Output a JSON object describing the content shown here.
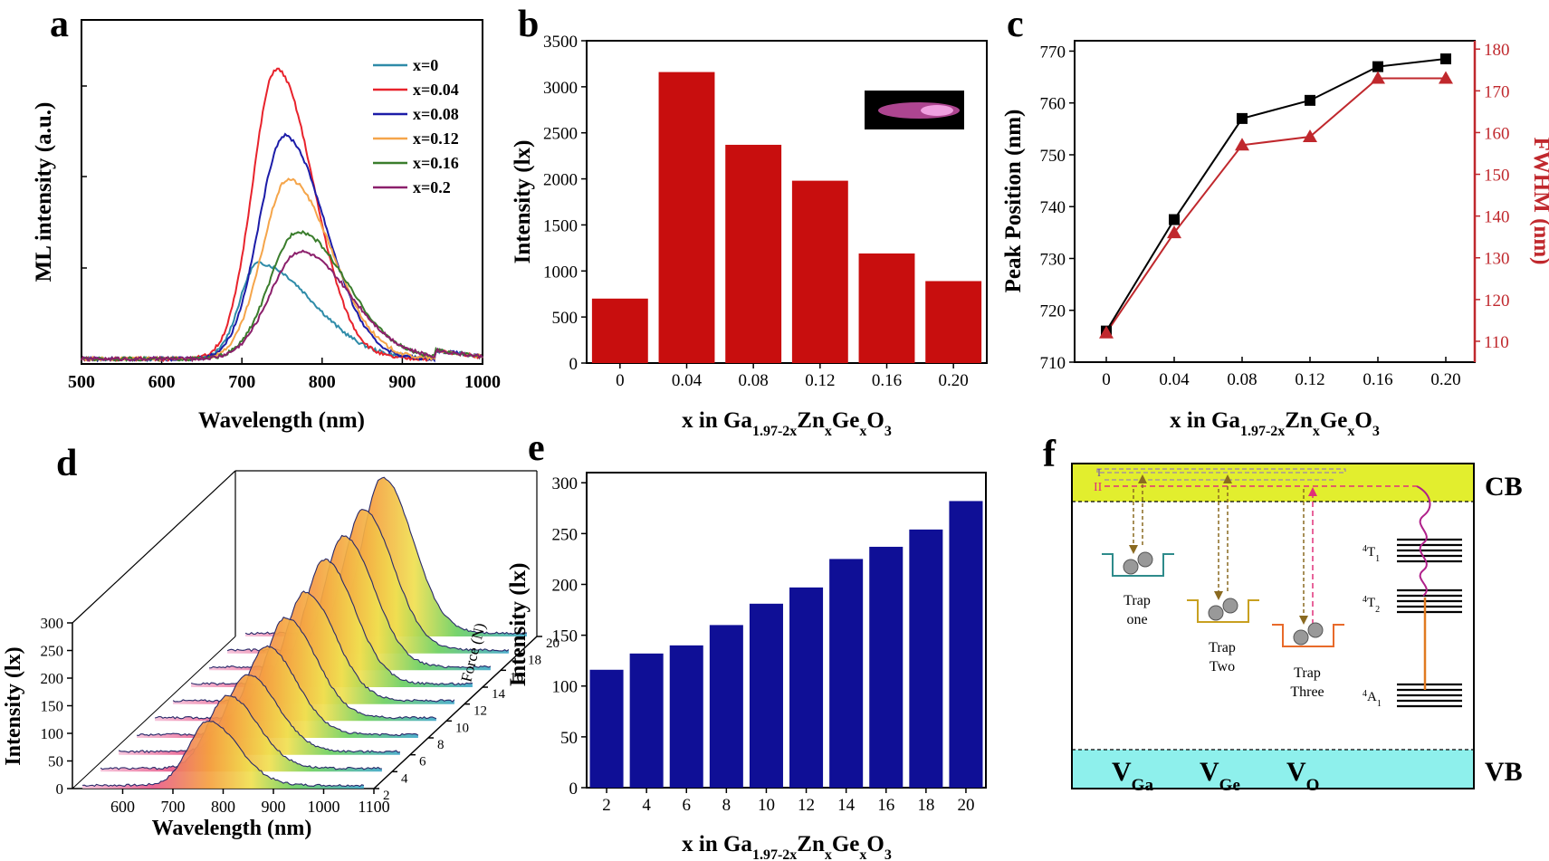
{
  "panel_letters": [
    "a",
    "b",
    "c",
    "d",
    "e",
    "f"
  ],
  "chart_data": [
    {
      "panel": "a",
      "type": "line",
      "xlabel": "Wavelength (nm)",
      "ylabel": "ML intensity (a.u.)",
      "xlim": [
        500,
        1000
      ],
      "xticks": [
        "500",
        "600",
        "700",
        "800",
        "900",
        "1000"
      ],
      "legend_position": "top-right",
      "series": [
        {
          "name": "x=0",
          "color": "#2e8ba8",
          "peak": 720,
          "amp": 0.33,
          "wl": 32,
          "wr": 95
        },
        {
          "name": "x=0.04",
          "color": "#e8232c",
          "peak": 743,
          "amp": 1.0,
          "wl": 42,
          "wr": 65
        },
        {
          "name": "x=0.08",
          "color": "#1c1ca8",
          "peak": 753,
          "amp": 0.77,
          "wl": 45,
          "wr": 72
        },
        {
          "name": "x=0.12",
          "color": "#f5a54a",
          "peak": 758,
          "amp": 0.62,
          "wl": 46,
          "wr": 76
        },
        {
          "name": "x=0.16",
          "color": "#3a7d2c",
          "peak": 770,
          "amp": 0.44,
          "wl": 50,
          "wr": 85
        },
        {
          "name": "x=0.2",
          "color": "#8b1f6b",
          "peak": 772,
          "amp": 0.37,
          "wl": 52,
          "wr": 88
        }
      ]
    },
    {
      "panel": "b",
      "type": "bar",
      "ylabel": "Intensity (lx)",
      "xlabel_parts": [
        "x in Ga",
        "1.97-2x",
        "Zn",
        "x",
        "Ge",
        "x",
        "O",
        "3"
      ],
      "categories": [
        "0",
        "0.04",
        "0.08",
        "0.12",
        "0.16",
        "0.20"
      ],
      "values": [
        700,
        3160,
        2370,
        1980,
        1190,
        890
      ],
      "ylim": [
        0,
        3500
      ],
      "yticks": [
        "0",
        "500",
        "1000",
        "1500",
        "2000",
        "2500",
        "3000",
        "3500"
      ],
      "bar_color": "#c80e0e"
    },
    {
      "panel": "c",
      "type": "line",
      "ylabel": "Peak Position (nm)",
      "y2label": "FWHM (nm)",
      "xlabel_parts": [
        "x in Ga",
        "1.97-2x",
        "Zn",
        "x",
        "Ge",
        "x",
        "O",
        "3"
      ],
      "categories": [
        "0",
        "0.04",
        "0.08",
        "0.12",
        "0.16",
        "0.20"
      ],
      "ylim": [
        710,
        772
      ],
      "yticks": [
        "710",
        "720",
        "730",
        "740",
        "750",
        "760",
        "770"
      ],
      "y2lim": [
        105,
        182
      ],
      "y2ticks": [
        "110",
        "120",
        "130",
        "140",
        "150",
        "160",
        "170",
        "180"
      ],
      "series": [
        {
          "name": "Peak Position",
          "color": "#000000",
          "values": [
            716,
            737.5,
            757,
            760.5,
            767,
            768.5
          ]
        },
        {
          "name": "FWHM",
          "color": "#c0282d",
          "values": [
            112,
            136,
            157,
            159,
            173,
            173
          ]
        }
      ]
    },
    {
      "panel": "d",
      "type": "area",
      "xlabel": "Wavelength (nm)",
      "ylabel": "Intensity (lx)",
      "zlabel": "Force (N)",
      "xlim": [
        500,
        1100
      ],
      "xticks": [
        "600",
        "700",
        "800",
        "900",
        "1000",
        "1100"
      ],
      "ylim": [
        0,
        320
      ],
      "yticks": [
        "0",
        "50",
        "100",
        "150",
        "200",
        "250",
        "300"
      ],
      "zticks": [
        "2",
        "4",
        "6",
        "8",
        "10",
        "12",
        "14",
        "16",
        "18",
        "20"
      ],
      "values": [
        116,
        132,
        140,
        160,
        181,
        197,
        225,
        237,
        254,
        282
      ]
    },
    {
      "panel": "e",
      "type": "bar",
      "ylabel": "Intensity (lx)",
      "xlabel_parts": [
        "x in Ga",
        "1.97-2x",
        "Zn",
        "x",
        "Ge",
        "x",
        "O",
        "3"
      ],
      "categories": [
        "2",
        "4",
        "6",
        "8",
        "10",
        "12",
        "14",
        "16",
        "18",
        "20"
      ],
      "values": [
        116,
        132,
        140,
        160,
        181,
        197,
        225,
        237,
        254,
        282
      ],
      "ylim": [
        0,
        310
      ],
      "yticks": [
        "0",
        "50",
        "100",
        "150",
        "200",
        "250",
        "300"
      ],
      "bar_color": "#0f0f96"
    }
  ],
  "diagram_f": {
    "cb_label": "CB",
    "vb_label": "VB",
    "roman_one": "I",
    "roman_two": "II",
    "traps": [
      {
        "line1": "Trap",
        "line2": "one",
        "color": "#2e8b8b"
      },
      {
        "line1": "Trap",
        "line2": "Two",
        "color": "#c8a020"
      },
      {
        "line1": "Trap",
        "line2": "Three",
        "color": "#e86a2a"
      }
    ],
    "levels": [
      {
        "sup": "4",
        "main": "T",
        "sub": "1"
      },
      {
        "sup": "4",
        "main": "T",
        "sub": "2"
      },
      {
        "sup": "4",
        "main": "A",
        "sub": "1"
      }
    ],
    "vacancies": [
      {
        "main": "V",
        "sub": "Ga"
      },
      {
        "main": "V",
        "sub": "Ge"
      },
      {
        "main": "V",
        "sub": "O"
      }
    ],
    "cb_color": "#e2ee2e",
    "vb_color": "#8ef0ec"
  }
}
